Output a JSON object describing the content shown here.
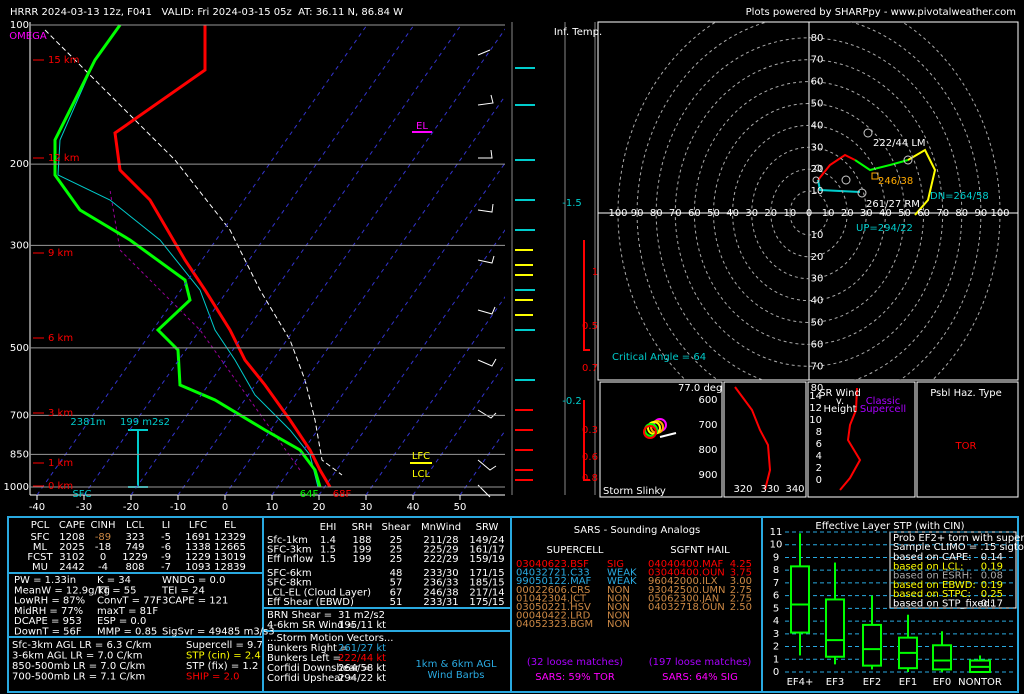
{
  "header": {
    "left": "HRRR 2024-03-13 12z, F041   VALID: Fri 2024-03-15 05z  AT: 36.11 N, 86.84 W",
    "right": "Plots powered by SHARPpy - www.pivotalweather.com"
  },
  "skewt": {
    "pressure_ticks": [
      100,
      200,
      300,
      500,
      700,
      850,
      1000
    ],
    "height_labels": [
      "15 km",
      "12 km",
      "9 km",
      "6 km",
      "3 km",
      "1 km",
      "0 km"
    ],
    "temp_ticks": [
      -40,
      -30,
      -20,
      -10,
      0,
      10,
      20,
      30,
      40,
      50
    ],
    "omega": "OMEGA",
    "el": "EL",
    "lfc": "LFC",
    "lcl": "LCL",
    "eff_depth": "2381m",
    "eff_srh": "199 m2s2",
    "sfc": "SFC",
    "dewpoint": "64F",
    "temperature": "68F"
  },
  "inferred": {
    "title": "Inf. Temp.",
    "values": [
      "-1.5",
      "1",
      "0.5",
      "0.7",
      "-0.2",
      "0.3",
      "0.6",
      "0.8"
    ]
  },
  "hodograph": {
    "origin": 0,
    "rings": [
      10,
      20,
      30,
      40,
      50,
      60,
      70,
      80,
      90,
      100
    ],
    "lm": "222/44 LM",
    "mean": "246/38",
    "rm": "261/27 RM",
    "dn": "DN=264/58",
    "up": "UP=294/22",
    "critical": "Critical Angle = 64"
  },
  "slinky": {
    "angle": "77.0 deg",
    "title": "Storm Slinky"
  },
  "thetae": {
    "pressure_labels": [
      "600",
      "700",
      "800",
      "900"
    ],
    "theta_labels": [
      "320",
      "330",
      "340"
    ]
  },
  "srwind": {
    "title": [
      "SR Wind",
      "v.",
      "Height"
    ],
    "heights": [
      "14",
      "12",
      "10",
      "8",
      "6",
      "4",
      "2",
      "0"
    ],
    "note": [
      "Classic",
      "Supercell"
    ]
  },
  "hazard": {
    "title": "Psbl Haz. Type",
    "type": "TOR"
  },
  "thermo": {
    "header": [
      "PCL",
      "CAPE",
      "CINH",
      "LCL",
      "LI",
      "LFC",
      "EL"
    ],
    "rows": [
      [
        "SFC",
        "1208",
        "-89",
        "323",
        "-5",
        "1691",
        "12329"
      ],
      [
        "ML",
        "2025",
        "-18",
        "749",
        "-6",
        "1338",
        "12665"
      ],
      [
        "FCST",
        "3102",
        "0",
        "1229",
        "-9",
        "1229",
        "13019"
      ],
      [
        "MU",
        "2442",
        "-4",
        "808",
        "-7",
        "1093",
        "12839"
      ]
    ],
    "stats": [
      [
        "PW = 1.33in",
        "K = 34",
        "WNDG = 0.0"
      ],
      [
        "MeanW = 12.9g/kg",
        "TT = 55",
        "TEI = 24"
      ],
      [
        "LowRH = 87%",
        "ConvT = 77F",
        "3CAPE = 121"
      ],
      [
        "MidRH = 77%",
        "maxT = 81F"
      ],
      [
        "DCAPE = 953",
        "ESP = 0.0"
      ],
      [
        "DownT = 56F",
        "MMP = 0.85",
        "SigSvr = 49485 m3/s3"
      ]
    ],
    "lapse": [
      "Sfc-3km AGL LR = 6.3 C/km",
      "3-6km AGL LR = 7.0 C/km",
      "850-500mb LR = 7.0 C/km",
      "700-500mb LR = 7.1 C/km"
    ],
    "indices": [
      "Supercell = 9.7",
      "STP (cin) = 2.4",
      "STP (fix) = 1.2",
      "SHIP = 2.0"
    ]
  },
  "kinematic": {
    "header": [
      "EHI",
      "SRH",
      "Shear",
      "MnWind",
      "SRW"
    ],
    "rows": [
      [
        "Sfc-1km",
        "1.4",
        "188",
        "25",
        "211/28",
        "149/24"
      ],
      [
        "SFC-3km",
        "1.5",
        "199",
        "25",
        "225/29",
        "161/17"
      ],
      [
        "Eff Inflow",
        "1.5",
        "199",
        "25",
        "222/29",
        "159/19"
      ]
    ],
    "rows2": [
      [
        "SFC-6km",
        "48",
        "233/30",
        "171/15"
      ],
      [
        "SFC-8km",
        "57",
        "236/33",
        "185/15"
      ],
      [
        "LCL-EL (Cloud Layer)",
        "67",
        "246/38",
        "217/14"
      ],
      [
        "Eff Shear (EBWD)",
        "51",
        "233/31",
        "175/15"
      ]
    ],
    "brn": [
      [
        "BRN Shear =",
        "31 m2/s2"
      ],
      [
        "4-6km SR Wind =",
        "195/11 kt"
      ]
    ],
    "motion_title": "...Storm Motion Vectors...",
    "motion": [
      [
        "Bunkers Right =",
        "261/27 kt"
      ],
      [
        "Bunkers Left =",
        "222/44 kt"
      ],
      [
        "Corfidi Downshear =",
        "264/58 kt"
      ],
      [
        "Corfidi Upshear =",
        "294/22 kt"
      ]
    ],
    "barbs_note": [
      "1km & 6km AGL",
      "Wind Barbs"
    ]
  },
  "sars": {
    "title": "SARS - Sounding Analogs",
    "supercell_title": "SUPERCELL",
    "hail_title": "SGFNT HAIL",
    "supercell": [
      [
        "03040623.BSF",
        "SIG"
      ],
      [
        "04032721.C33",
        "WEAK"
      ],
      [
        "99050122.MAF",
        "WEAK"
      ],
      [
        "00022606.CRS",
        "NON"
      ],
      [
        "01042304.JCT",
        "NON"
      ],
      [
        "03050221.HSV",
        "NON"
      ],
      [
        "00040422.LRD",
        "NON"
      ],
      [
        "04052323.BGM",
        "NON"
      ]
    ],
    "hail": [
      [
        "04040400.MAF",
        "4.25"
      ],
      [
        "03040400.OUN",
        "3.75"
      ],
      [
        "96042000.ILX",
        "3.00"
      ],
      [
        "93042500.UMN",
        "2.75"
      ],
      [
        "05062300.JAN",
        "2.75"
      ],
      [
        "04032718.OUN",
        "2.50"
      ]
    ],
    "supercell_matches": "(32 loose matches)",
    "supercell_pct": "SARS: 59% TOR",
    "hail_matches": "(197 loose matches)",
    "hail_pct": "SARS: 64% SIG"
  },
  "stp": {
    "title": "Effective Layer STP (with CIN)",
    "ylim": [
      0,
      11
    ],
    "yticks": [
      0,
      1,
      2,
      3,
      4,
      5,
      6,
      7,
      8,
      9,
      10,
      11
    ],
    "categories": [
      "EF4+",
      "EF3",
      "EF2",
      "EF1",
      "EF0",
      "NONTOR"
    ],
    "boxes": [
      [
        1.3,
        3.1,
        5.3,
        8.3,
        10.9
      ],
      [
        0.6,
        1.2,
        2.5,
        5.7,
        8.6
      ],
      [
        0.2,
        0.5,
        1.8,
        3.7,
        6.0
      ],
      [
        0,
        0.3,
        1.5,
        2.7,
        4.5
      ],
      [
        0,
        0.2,
        0.9,
        2.1,
        3.2
      ],
      [
        0,
        0,
        0.4,
        0.9,
        1.3
      ]
    ],
    "prob_title": [
      "Prob EF2+ torn with supercell",
      "Sample CLIMO = .15 sigtor"
    ],
    "prob": [
      [
        "based on CAPE:",
        "0.14"
      ],
      [
        "based on LCL:",
        "0.19"
      ],
      [
        "based on ESRH:",
        "0.08"
      ],
      [
        "based on EBWD:",
        "0.19"
      ],
      [
        "based on STPC:",
        "0.25"
      ],
      [
        "based on STP_fixed:",
        "0.17"
      ]
    ]
  }
}
